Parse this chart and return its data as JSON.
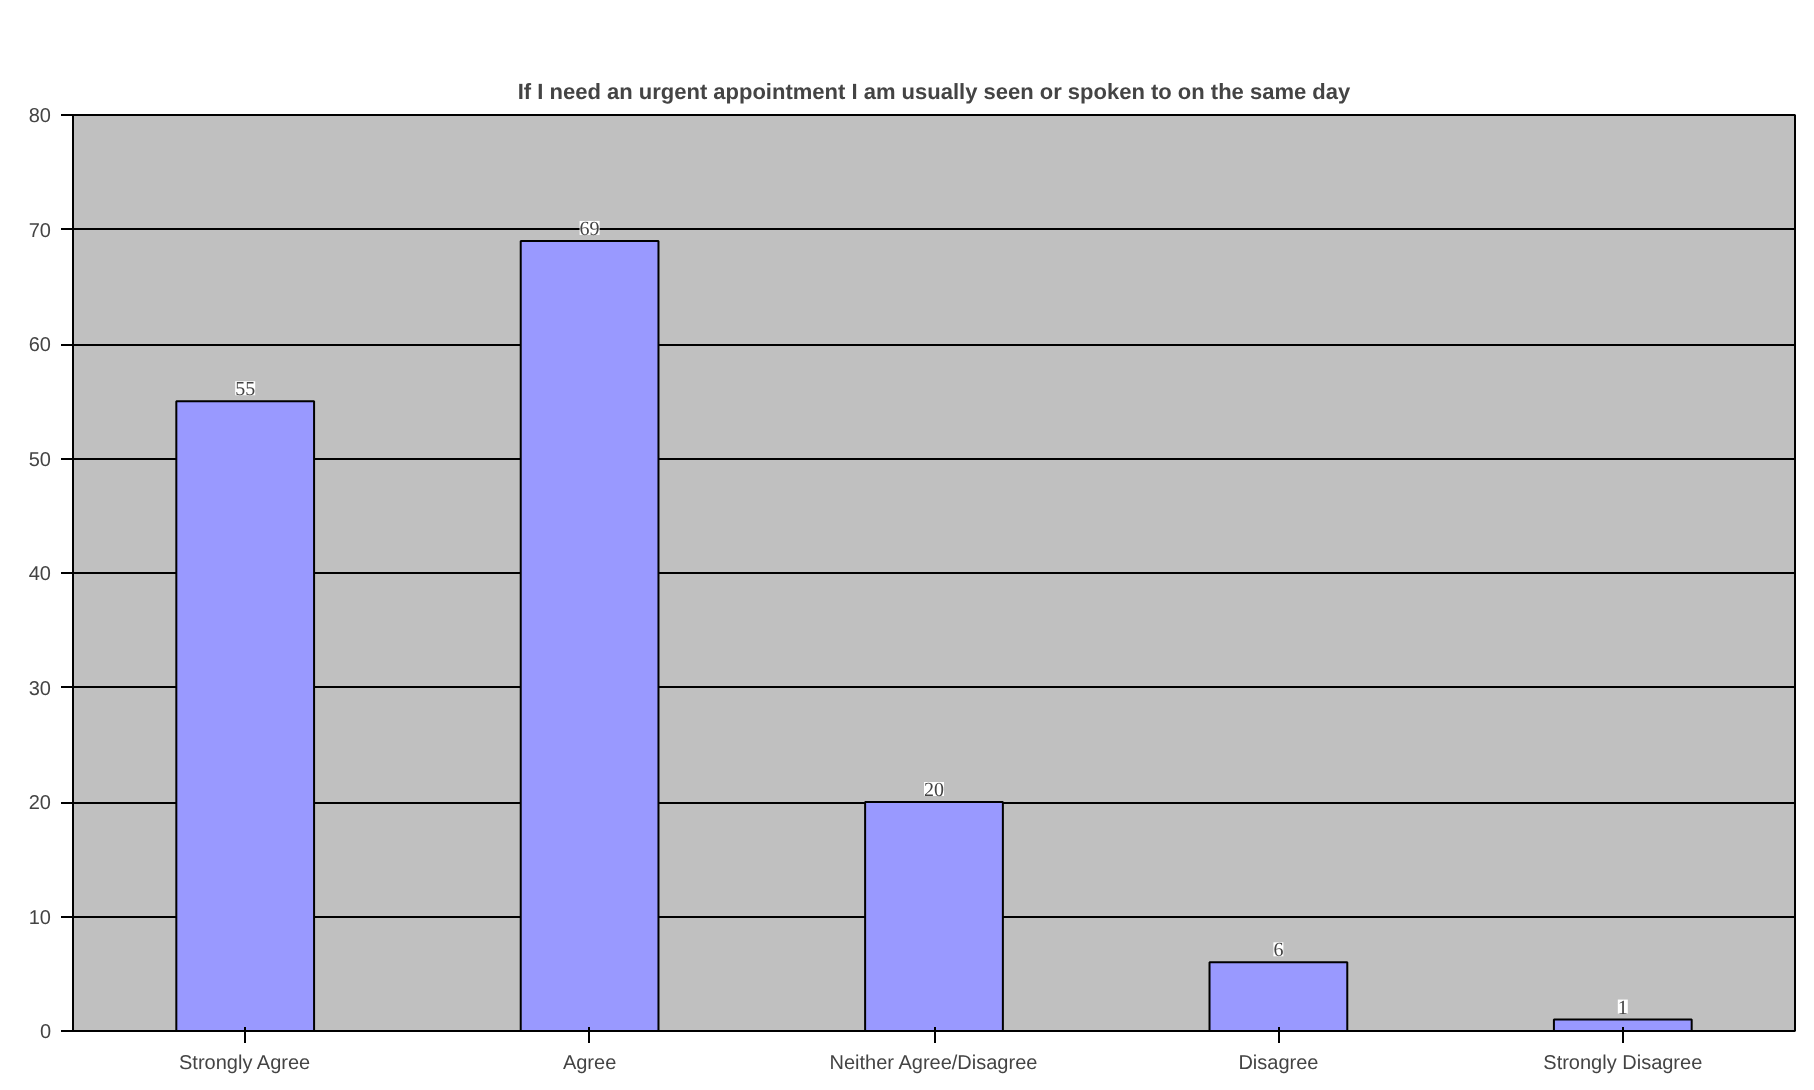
{
  "chart_data": {
    "type": "bar",
    "title": "If I need an urgent appointment I am usually seen or spoken to on the same day",
    "categories": [
      "Strongly Agree",
      "Agree",
      "Neither Agree/Disagree",
      "Disagree",
      "Strongly Disagree"
    ],
    "values": [
      55,
      69,
      20,
      6,
      1
    ],
    "color": "#9999ff",
    "ylim": [
      0,
      80
    ],
    "yticks": [
      0,
      10,
      20,
      30,
      40,
      50,
      60,
      70,
      80
    ],
    "grid": "y",
    "data_labels": true
  }
}
